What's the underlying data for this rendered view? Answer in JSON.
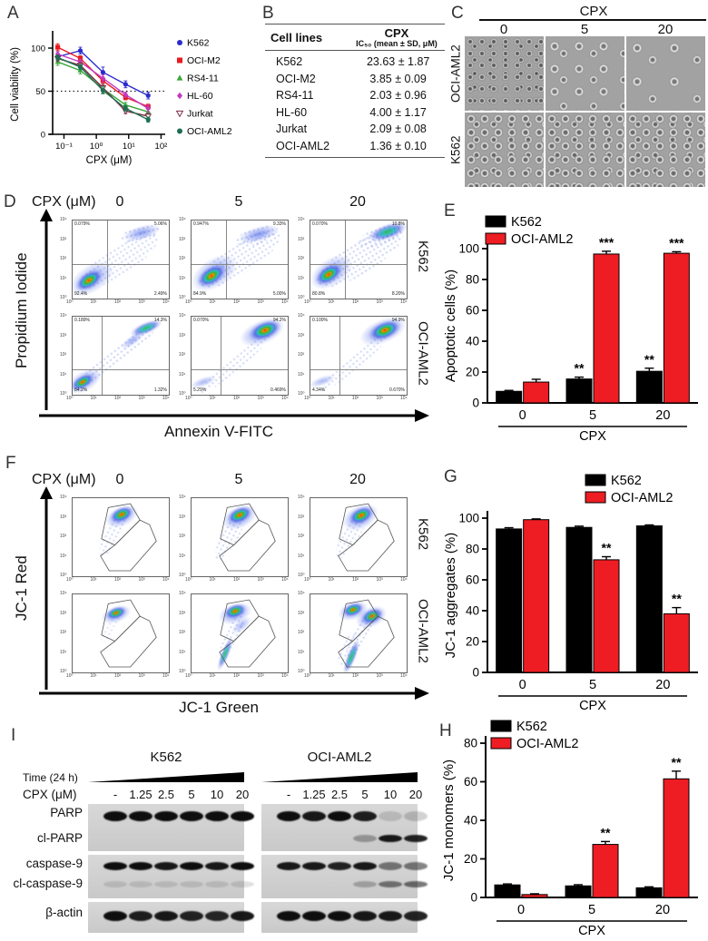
{
  "panels": {
    "a": "A",
    "b": "B",
    "c": "C",
    "d": "D",
    "e": "E",
    "f": "F",
    "g": "G",
    "h": "H",
    "i": "I"
  },
  "table_b": {
    "col1_header": "Cell lines",
    "col2_header_title": "CPX",
    "col2_header_sub": "IC₅₀ (mean ± SD, μM)",
    "rows": [
      {
        "cell_line": "K562",
        "ic50": "23.63 ± 1.87"
      },
      {
        "cell_line": "OCI-M2",
        "ic50": "3.85 ± 0.09"
      },
      {
        "cell_line": "RS4-11",
        "ic50": "2.03 ± 0.96"
      },
      {
        "cell_line": "HL-60",
        "ic50": "4.00 ± 1.17"
      },
      {
        "cell_line": "Jurkat",
        "ic50": "2.09 ± 0.08"
      },
      {
        "cell_line": "OCI-AML2",
        "ic50": "1.36 ± 0.10"
      }
    ]
  },
  "panel_c": {
    "title": "CPX",
    "doses": [
      "0",
      "5",
      "20"
    ],
    "row_labels": [
      "OCI-AML2",
      "K562"
    ]
  },
  "panel_d": {
    "header": "CPX (μM)",
    "doses": [
      "0",
      "5",
      "20"
    ],
    "row_labels": [
      "K562",
      "OCI-AML2"
    ],
    "ylabel": "Propidium Iodide",
    "xlabel": "Annexin V-FITC",
    "ticks": [
      "10⁰",
      "10¹",
      "10²",
      "10³",
      "10⁴"
    ],
    "plots": [
      {
        "row": "K562",
        "dose": "0",
        "ul": "0.079%",
        "ur": "5.06%",
        "ll": "92.4%",
        "lr": "2.49%"
      },
      {
        "row": "K562",
        "dose": "5",
        "ul": "0.947%",
        "ur": "9.33%",
        "ll": "84.9%",
        "lr": "5.00%"
      },
      {
        "row": "K562",
        "dose": "20",
        "ul": "0.070%",
        "ur": "10.8%",
        "ll": "80.8%",
        "lr": "8.20%"
      },
      {
        "row": "OCI-AML2",
        "dose": "0",
        "ul": "0.189%",
        "ur": "14.3%",
        "ll": "84.2%",
        "lr": "1.32%"
      },
      {
        "row": "OCI-AML2",
        "dose": "5",
        "ul": "0.070%",
        "ur": "94.2%",
        "ll": "5.29%",
        "lr": "0.469%"
      },
      {
        "row": "OCI-AML2",
        "dose": "20",
        "ul": "0.100%",
        "ur": "94.9%",
        "ll": "4.34%",
        "lr": "0.670%"
      }
    ]
  },
  "panel_f": {
    "header": "CPX (μM)",
    "doses": [
      "0",
      "5",
      "20"
    ],
    "row_labels": [
      "K562",
      "OCI-AML2"
    ],
    "ylabel": "JC-1 Red",
    "xlabel": "JC-1 Green",
    "ticks": [
      "10⁰",
      "10¹",
      "10²",
      "10³",
      "10⁴"
    ]
  },
  "panel_i": {
    "time_label": "Time (24 h)",
    "cpx_label": "CPX (μM)",
    "doses": [
      "-",
      "1.25",
      "2.5",
      "5",
      "10",
      "20"
    ],
    "groups": [
      "K562",
      "OCI-AML2"
    ],
    "proteins": [
      "PARP",
      "cl-PARP",
      "caspase-9",
      "cl-caspase-9",
      "β-actin"
    ],
    "bands": {
      "k562": {
        "parp": [
          1,
          1,
          1,
          1,
          1,
          1
        ],
        "cl_parp": [
          0,
          0,
          0,
          0,
          0,
          0
        ],
        "casp9": [
          1,
          1,
          0.95,
          1,
          0.95,
          1
        ],
        "cl_casp9": [
          0.12,
          0.12,
          0.12,
          0.12,
          0.12,
          0.12
        ],
        "actin": [
          1,
          0.92,
          0.95,
          0.9,
          0.88,
          0.95
        ]
      },
      "oci": {
        "parp": [
          1,
          0.95,
          1,
          0.92,
          0.14,
          0.18
        ],
        "cl_parp": [
          0,
          0,
          0,
          0.3,
          0.95,
          0.9
        ],
        "casp9": [
          0.95,
          0.95,
          0.9,
          0.95,
          0.5,
          0.5
        ],
        "cl_casp9": [
          0,
          0,
          0,
          0.25,
          0.5,
          0.55
        ],
        "actin": [
          1,
          1,
          1,
          0.95,
          0.95,
          0.9
        ]
      }
    }
  },
  "chart_data": [
    {
      "id": "A",
      "type": "line",
      "title": "",
      "xlabel": "CPX (μM)",
      "ylabel": "Cell viability (%)",
      "x_scale": "log",
      "x": [
        0.064,
        0.32,
        1.6,
        8,
        40
      ],
      "x_tick_labels": [
        "10⁻¹",
        "10⁰",
        "10¹",
        "10²"
      ],
      "x_tick_values": [
        0.1,
        1,
        10,
        100
      ],
      "ylim": [
        0,
        115
      ],
      "yticks": [
        0,
        50,
        100
      ],
      "reference_line_y": 50,
      "legend_position": "right",
      "series": [
        {
          "name": "K562",
          "color": "#2a2ad0",
          "marker": "circle",
          "values": [
            90,
            97,
            72,
            58,
            45
          ],
          "errors": [
            4,
            4,
            6,
            4,
            4
          ]
        },
        {
          "name": "OCI-M2",
          "color": "#e81a1e",
          "marker": "square",
          "values": [
            101,
            88,
            62,
            43,
            32
          ],
          "errors": [
            4,
            3,
            4,
            3,
            3
          ]
        },
        {
          "name": "RS4-11",
          "color": "#3aa83a",
          "marker": "triangle",
          "values": [
            84,
            74,
            53,
            34,
            26
          ],
          "errors": [
            4,
            4,
            5,
            3,
            3
          ]
        },
        {
          "name": "HL-60",
          "color": "#c23ac2",
          "marker": "diamond",
          "values": [
            93,
            84,
            65,
            46,
            30
          ],
          "errors": [
            3,
            3,
            4,
            3,
            4
          ]
        },
        {
          "name": "Jurkat",
          "color": "#7c2f42",
          "marker": "triangle-down-open",
          "values": [
            88,
            80,
            54,
            27,
            21
          ],
          "errors": [
            3,
            3,
            4,
            3,
            3
          ]
        },
        {
          "name": "OCI-AML2",
          "color": "#1e6e52",
          "marker": "circle",
          "values": [
            89,
            78,
            51,
            30,
            17
          ],
          "errors": [
            3,
            3,
            4,
            3,
            3
          ]
        }
      ]
    },
    {
      "id": "E",
      "type": "bar",
      "xlabel": "CPX",
      "ylabel": "Apoptotic cells (%)",
      "categories": [
        "0",
        "5",
        "20"
      ],
      "ylim": [
        0,
        100
      ],
      "yticks": [
        0,
        20,
        40,
        60,
        80,
        100
      ],
      "legend_position": "top-left",
      "series": [
        {
          "name": "K562",
          "color": "#000000",
          "values": [
            7.5,
            15.5,
            20.5
          ],
          "errors": [
            0.6,
            1.2,
            2
          ],
          "sig": [
            "",
            "**",
            "**"
          ]
        },
        {
          "name": "OCI-AML2",
          "color": "#ee1c23",
          "values": [
            13.5,
            96.5,
            97
          ],
          "errors": [
            1.8,
            1.8,
            1
          ],
          "sig": [
            "",
            "***",
            "***"
          ]
        }
      ]
    },
    {
      "id": "G",
      "type": "bar",
      "xlabel": "CPX",
      "ylabel": "JC-1 aggregates (%)",
      "categories": [
        "0",
        "5",
        "20"
      ],
      "ylim": [
        0,
        100
      ],
      "yticks": [
        0,
        20,
        40,
        60,
        80,
        100
      ],
      "legend_position": "top-right",
      "series": [
        {
          "name": "K562",
          "color": "#000000",
          "values": [
            93,
            94,
            95
          ],
          "errors": [
            0.8,
            0.8,
            0.6
          ],
          "sig": [
            "",
            "",
            ""
          ]
        },
        {
          "name": "OCI-AML2",
          "color": "#ee1c23",
          "values": [
            99,
            73,
            38
          ],
          "errors": [
            0.5,
            2,
            4
          ],
          "sig": [
            "",
            "**",
            "**"
          ]
        }
      ]
    },
    {
      "id": "H",
      "type": "bar",
      "xlabel": "CPX",
      "ylabel": "JC-1 monomers (%)",
      "categories": [
        "0",
        "5",
        "20"
      ],
      "ylim": [
        0,
        80
      ],
      "yticks": [
        0,
        20,
        40,
        60,
        80
      ],
      "legend_position": "top-left",
      "series": [
        {
          "name": "K562",
          "color": "#000000",
          "values": [
            6.5,
            6,
            5
          ],
          "errors": [
            0.5,
            0.6,
            0.5
          ],
          "sig": [
            "",
            "",
            ""
          ]
        },
        {
          "name": "OCI-AML2",
          "color": "#ee1c23",
          "values": [
            1.5,
            27.5,
            61.5
          ],
          "errors": [
            0.4,
            1.5,
            4
          ],
          "sig": [
            "",
            "**",
            "**"
          ]
        }
      ]
    }
  ]
}
